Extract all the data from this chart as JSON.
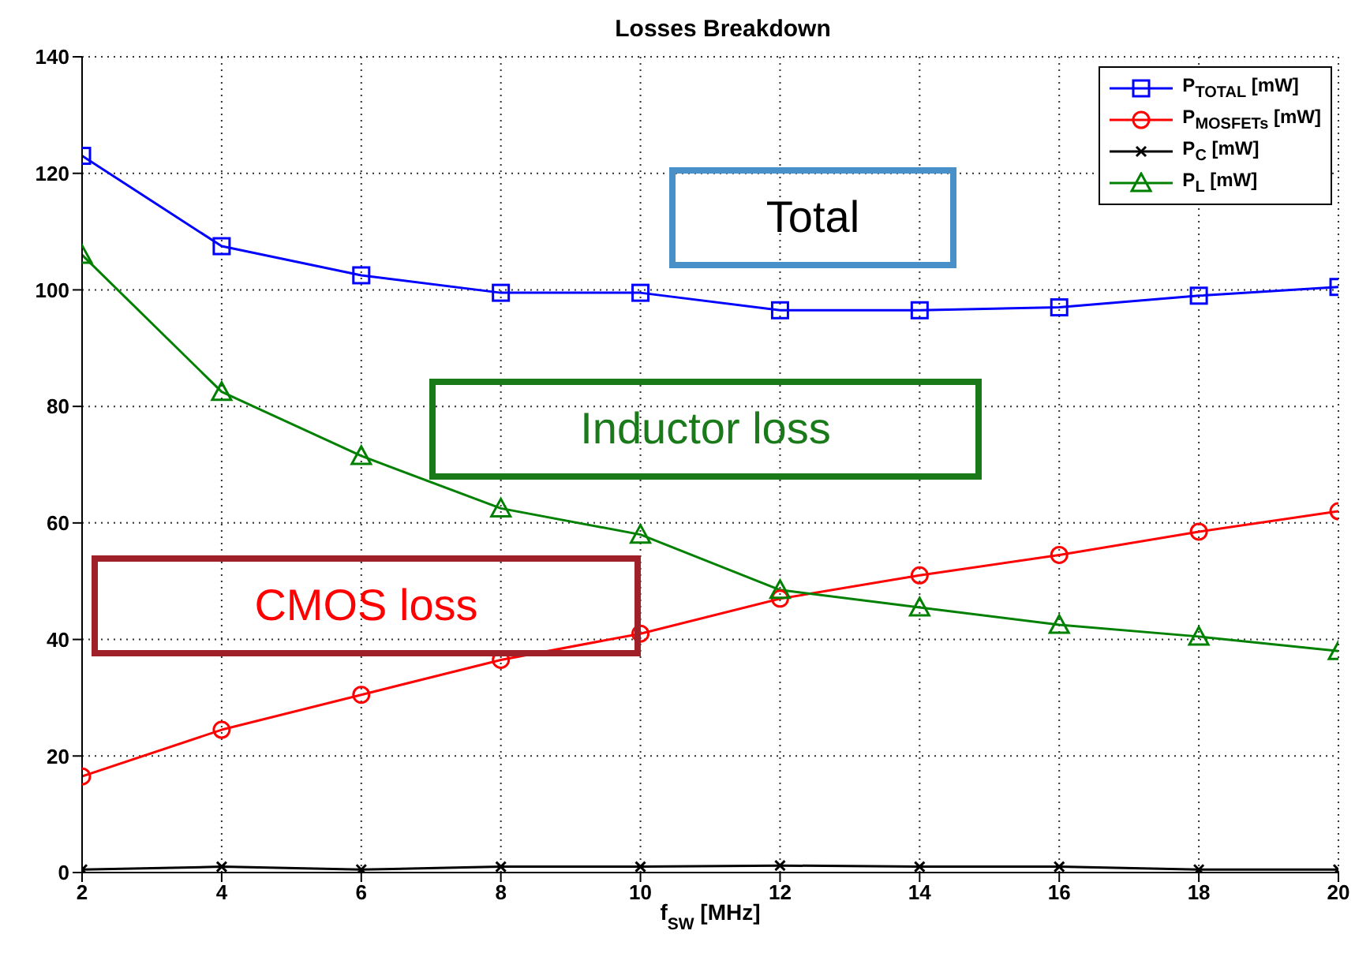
{
  "chart_data": {
    "type": "line",
    "title": "Losses Breakdown",
    "xlabel": "f$_{SW}$ [MHz]",
    "x": [
      2,
      4,
      6,
      8,
      10,
      12,
      14,
      16,
      18,
      20
    ],
    "series": [
      {
        "name": "P$_{TOTAL}$ [mW]",
        "color": "#0000ff",
        "marker": "square",
        "values": [
          123,
          107.5,
          102.5,
          99.5,
          99.5,
          96.5,
          96.5,
          97,
          99,
          100.5
        ]
      },
      {
        "name": "P$_{MOSFETs}$ [mW]",
        "color": "#ff0000",
        "marker": "circle",
        "values": [
          16.5,
          24.5,
          30.5,
          36.5,
          41,
          47,
          51,
          54.5,
          58.5,
          62
        ]
      },
      {
        "name": "P$_{C}$ [mW]",
        "color": "#000000",
        "marker": "cross",
        "values": [
          0.5,
          1,
          0.5,
          1,
          1,
          1.2,
          1,
          1,
          0.5,
          0.5
        ]
      },
      {
        "name": "P$_{L}$ [mW]",
        "color": "#008000",
        "marker": "triangle",
        "values": [
          106,
          82.5,
          71.5,
          62.5,
          58,
          48.5,
          45.5,
          42.5,
          40.5,
          38
        ]
      }
    ],
    "xlim": [
      2,
      20
    ],
    "xticks": [
      2,
      4,
      6,
      8,
      10,
      12,
      14,
      16,
      18,
      20
    ],
    "ylim": [
      0,
      140
    ],
    "yticks": [
      0,
      20,
      40,
      60,
      80,
      100,
      120,
      140
    ],
    "grid": true,
    "legend": "top right",
    "line_style": "solid",
    "annotations": [
      "Total",
      "Inductor loss",
      "CMOS loss"
    ]
  }
}
